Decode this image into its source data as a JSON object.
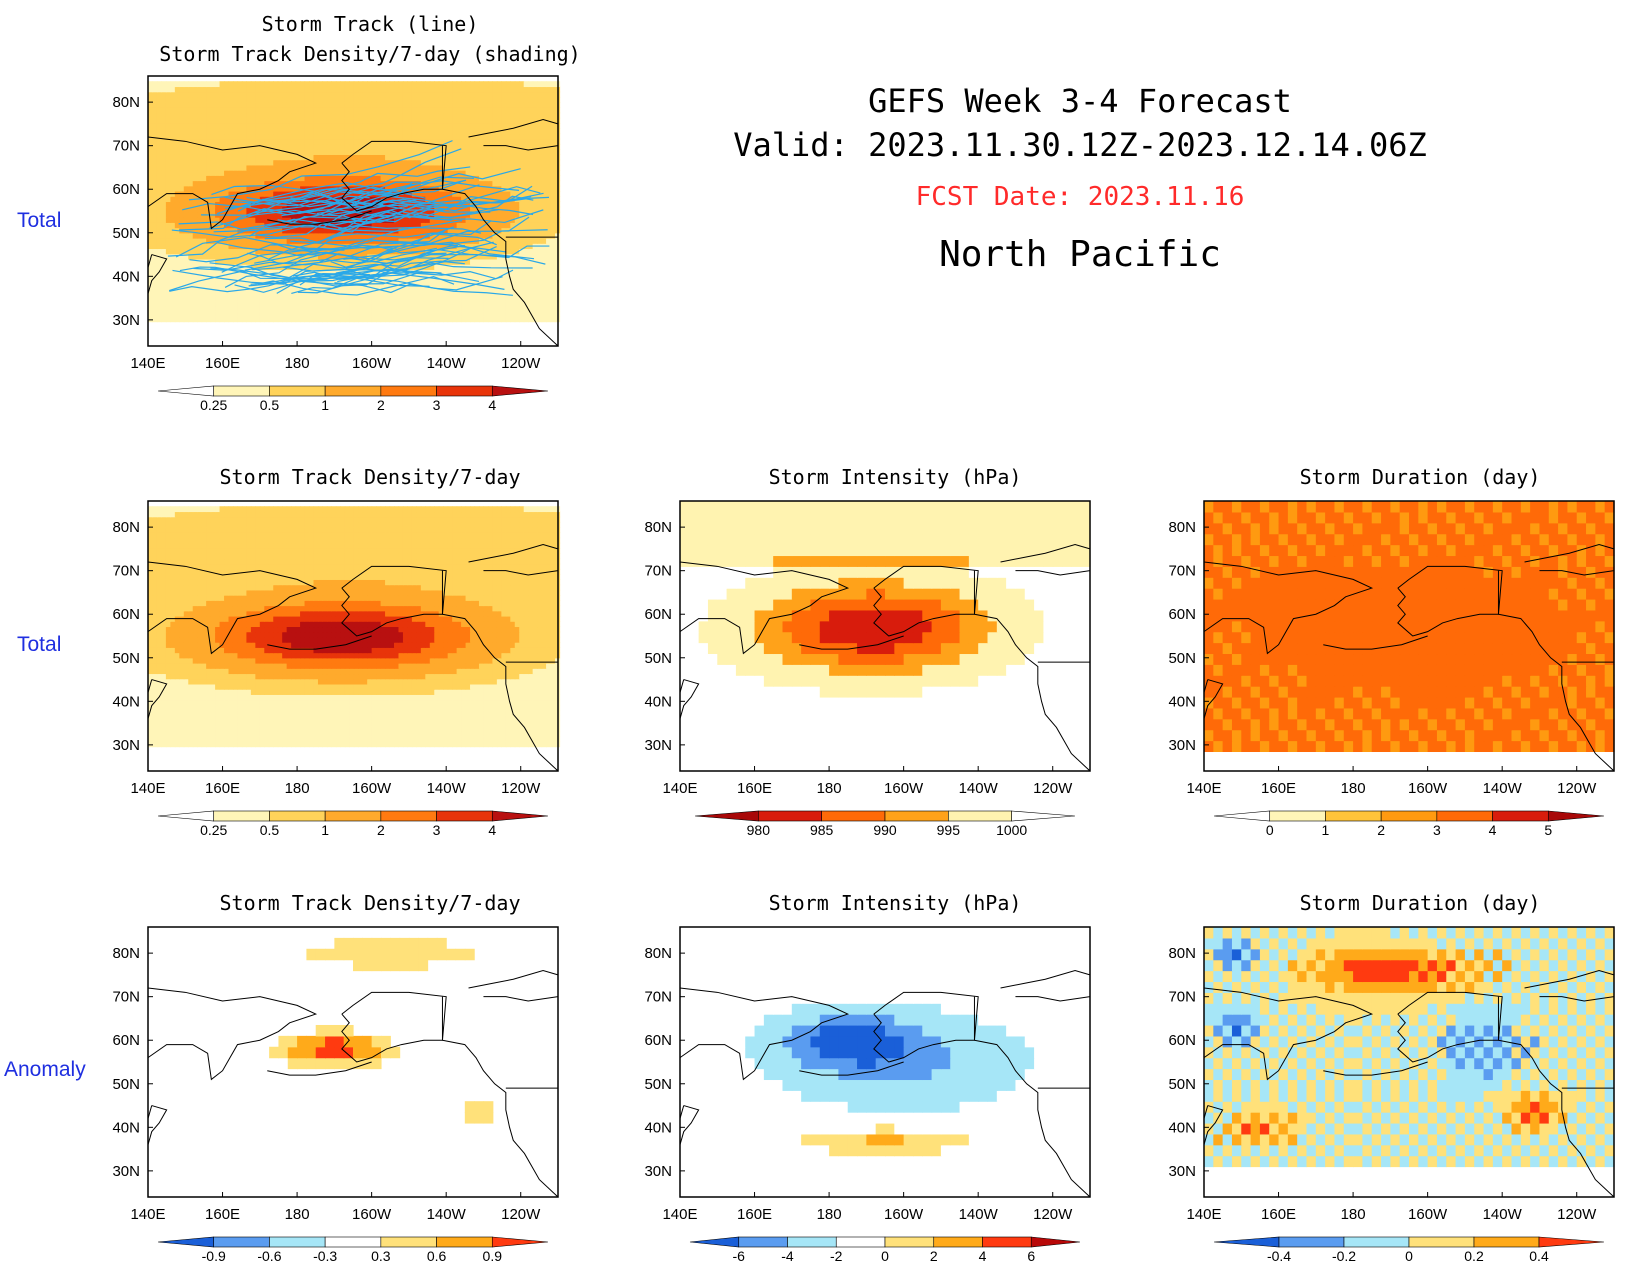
{
  "header": {
    "line1": "GEFS Week 3-4 Forecast",
    "line2": "Valid: 2023.11.30.12Z-2023.12.14.06Z",
    "fcst": "FCST Date: 2023.11.16",
    "region": "North Pacific",
    "fcst_color": "#ff2a2a"
  },
  "row_labels": {
    "total1": "Total",
    "total2": "Total",
    "anomaly": "Anomaly",
    "color": "#1f2fe0"
  },
  "axes": {
    "lon_labels": [
      "140E",
      "160E",
      "180",
      "160W",
      "140W",
      "120W"
    ],
    "lat_labels": [
      "80N",
      "70N",
      "60N",
      "50N",
      "40N",
      "30N"
    ]
  },
  "panels": [
    {
      "id": "p0",
      "title_lines": [
        "Storm Track (line)",
        "Storm Track Density/7-day (shading)"
      ],
      "kind": "density_tracks",
      "colorbar": "density"
    },
    {
      "id": "p1",
      "title_lines": [
        "Storm Track Density/7-day"
      ],
      "kind": "density",
      "colorbar": "density"
    },
    {
      "id": "p2",
      "title_lines": [
        "Storm Intensity (hPa)"
      ],
      "kind": "intensity",
      "colorbar": "intensity"
    },
    {
      "id": "p3",
      "title_lines": [
        "Storm Duration (day)"
      ],
      "kind": "duration",
      "colorbar": "duration"
    },
    {
      "id": "p4",
      "title_lines": [
        "Storm Track Density/7-day"
      ],
      "kind": "density_anom",
      "colorbar": "density_anom"
    },
    {
      "id": "p5",
      "title_lines": [
        "Storm Intensity (hPa)"
      ],
      "kind": "intensity_anom",
      "colorbar": "intensity_anom"
    },
    {
      "id": "p6",
      "title_lines": [
        "Storm Duration (day)"
      ],
      "kind": "duration_anom",
      "colorbar": "duration_anom"
    }
  ],
  "colorbars": {
    "density": {
      "labels": [
        "0.25",
        "0.5",
        "1",
        "2",
        "3",
        "4"
      ],
      "colors": [
        "#ffffff",
        "#fff5b8",
        "#ffd35a",
        "#ffaa2c",
        "#ff7a10",
        "#e8340a",
        "#b81010"
      ]
    },
    "intensity": {
      "labels": [
        "980",
        "985",
        "990",
        "995",
        "1000"
      ],
      "colors": [
        "#a80808",
        "#d81c0c",
        "#ff6a08",
        "#ffa21a",
        "#fff3b0",
        "#ffffff"
      ]
    },
    "duration": {
      "labels": [
        "0",
        "1",
        "2",
        "3",
        "4",
        "5"
      ],
      "colors": [
        "#ffffff",
        "#fff5b8",
        "#ffc43a",
        "#ff9a10",
        "#ff6a08",
        "#d81c0c",
        "#a80808"
      ]
    },
    "density_anom": {
      "labels": [
        "-0.9",
        "-0.6",
        "-0.3",
        "0.3",
        "0.6",
        "0.9"
      ],
      "colors": [
        "#1a5fd8",
        "#5a9cf0",
        "#a6e6f7",
        "#ffffff",
        "#ffe17a",
        "#ffaa1a",
        "#ff3a10"
      ]
    },
    "intensity_anom": {
      "labels": [
        "-6",
        "-4",
        "-2",
        "0",
        "2",
        "4",
        "6"
      ],
      "colors": [
        "#1a5fd8",
        "#5a9cf0",
        "#a6e6f7",
        "#ffffff",
        "#ffe17a",
        "#ffaa1a",
        "#ff3a10",
        "#b80808"
      ]
    },
    "duration_anom": {
      "labels": [
        "-0.4",
        "-0.2",
        "0",
        "0.2",
        "0.4"
      ],
      "colors": [
        "#1a5fd8",
        "#5a9cf0",
        "#a6e6f7",
        "#ffe17a",
        "#ffaa1a",
        "#ff3a10"
      ]
    }
  },
  "colors": {
    "track_line": "#2aa8e8",
    "coast": "#000000"
  }
}
